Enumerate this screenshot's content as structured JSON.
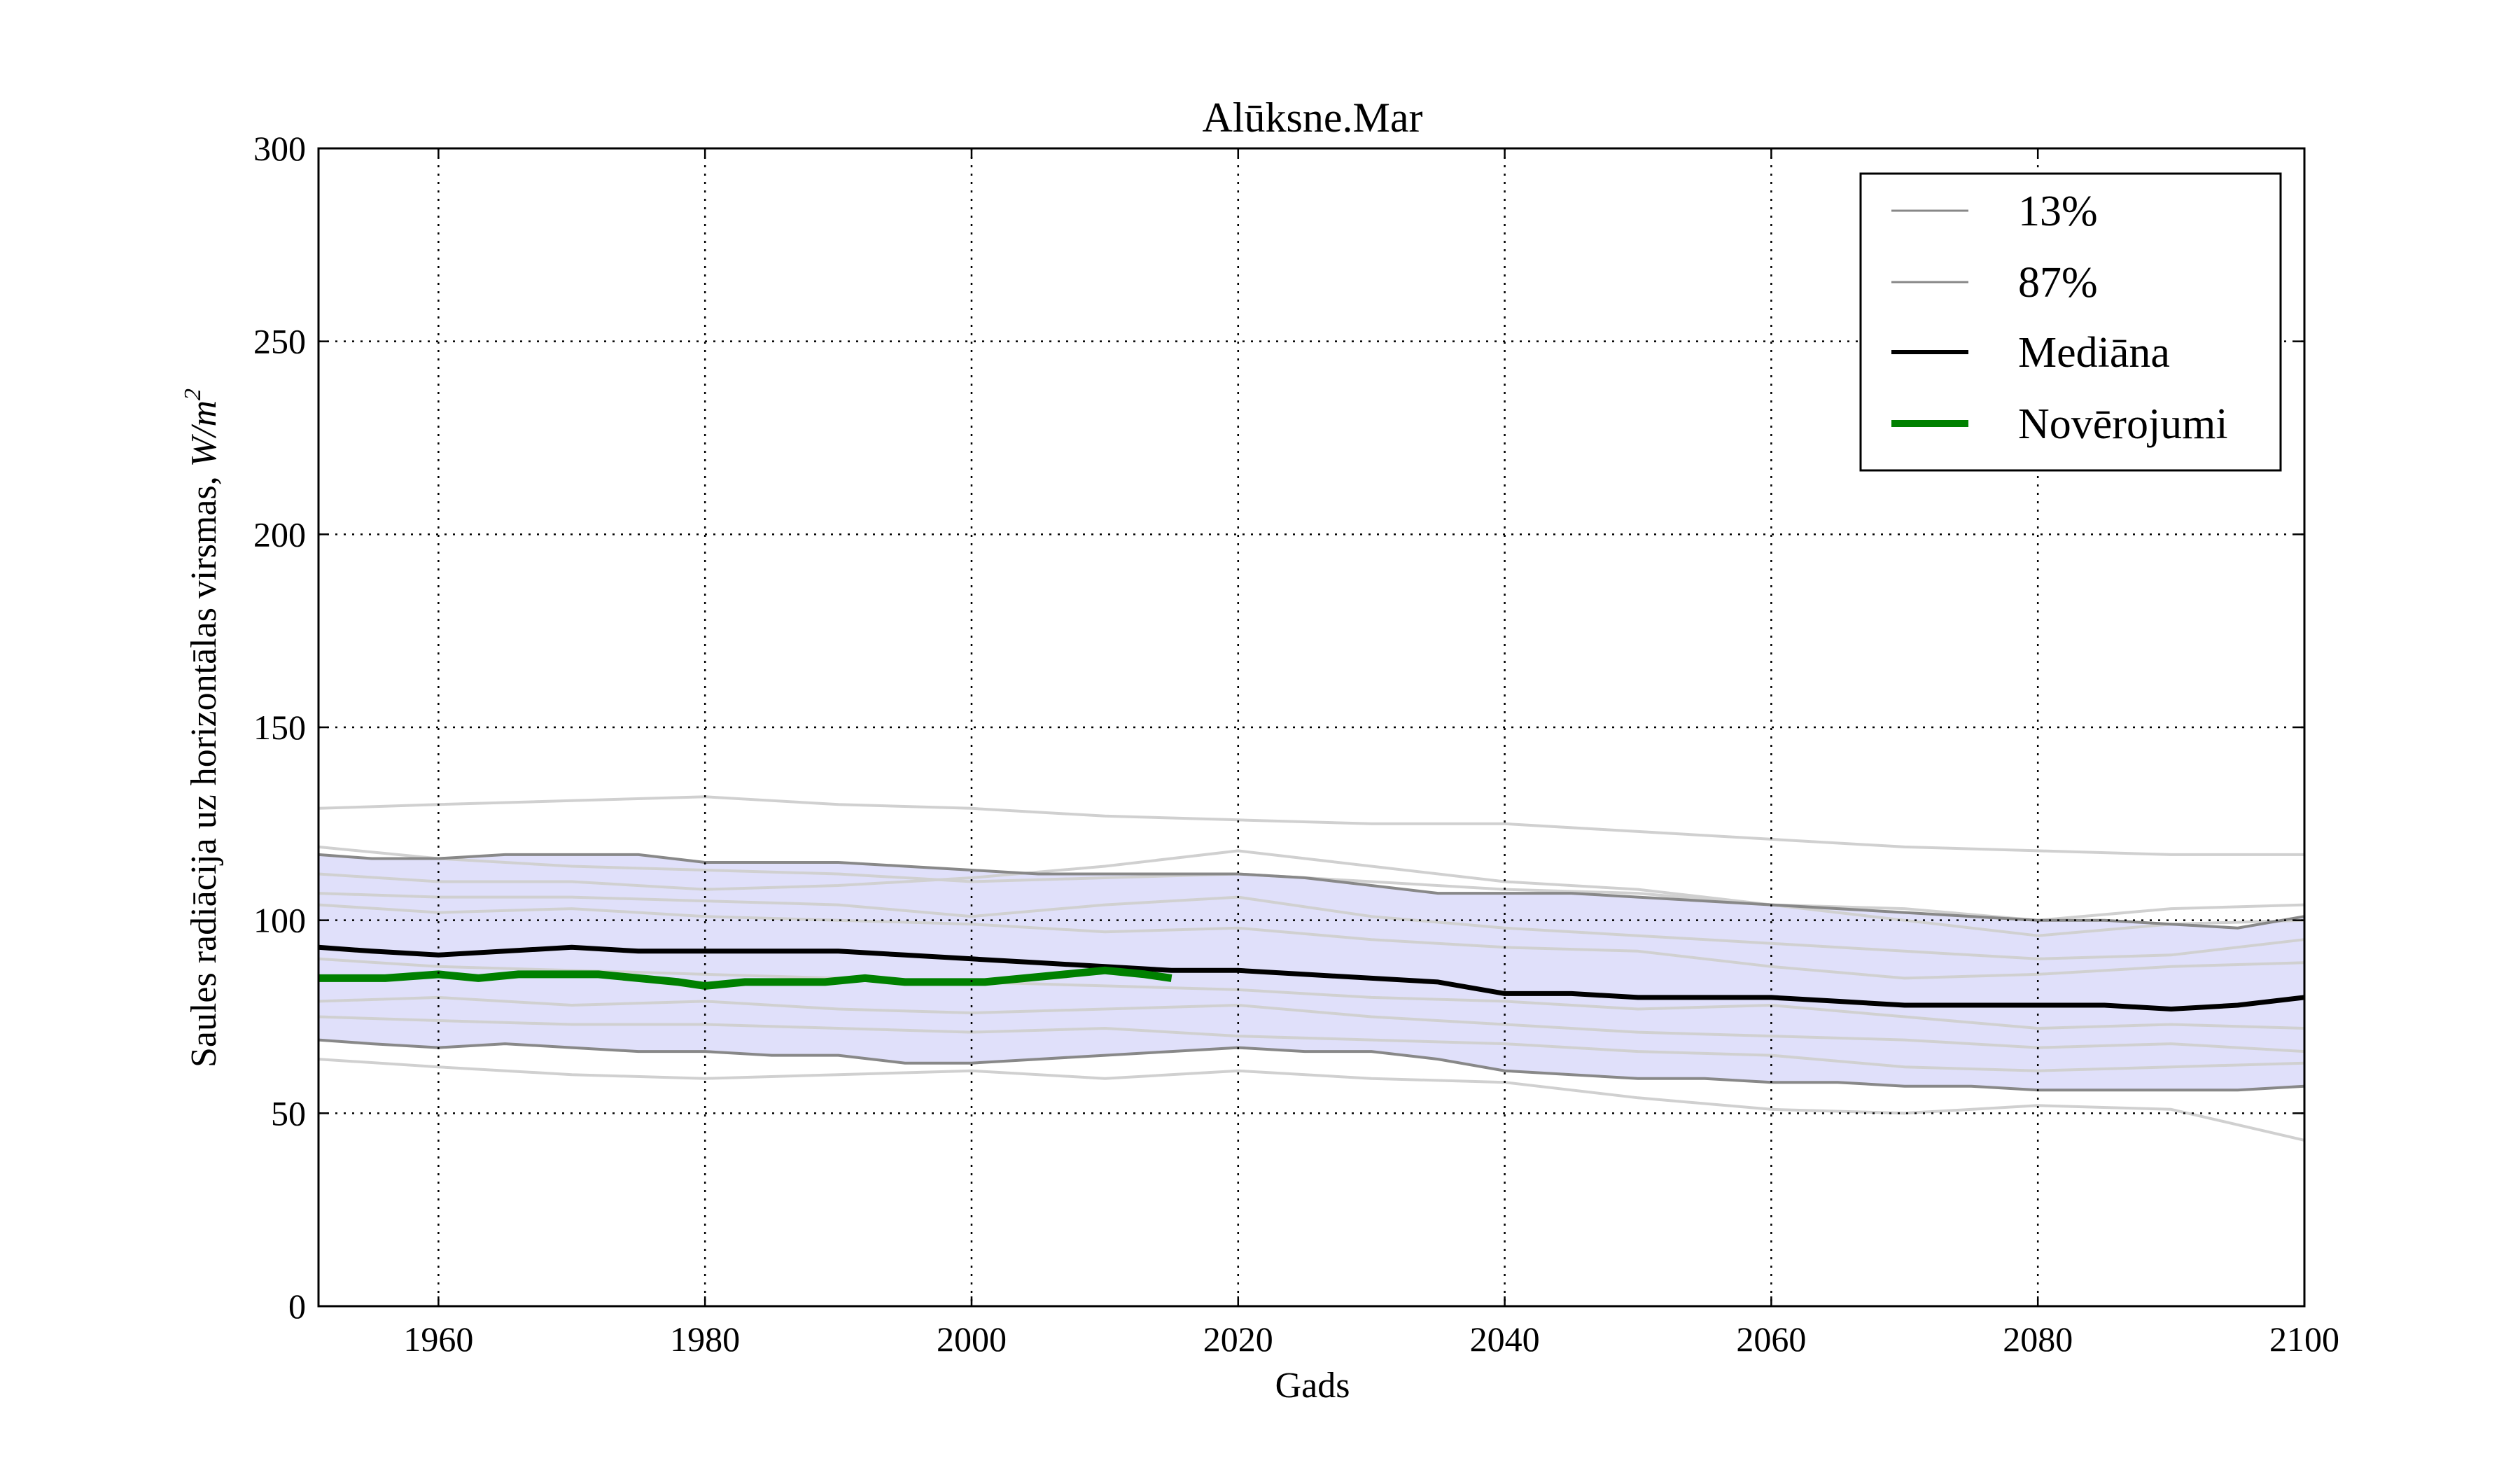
{
  "chart_data": {
    "type": "line",
    "title": "Alūksne.Mar",
    "xlabel": "Gads",
    "ylabel": "Saules radiācija uz horizontālas virsmas, ",
    "ylabel_math": "W/m",
    "ylabel_exp": "2",
    "xlim": [
      1951,
      2100
    ],
    "ylim": [
      0,
      300
    ],
    "xticks": [
      1960,
      1980,
      2000,
      2020,
      2040,
      2060,
      2080,
      2100
    ],
    "yticks": [
      0,
      50,
      100,
      150,
      200,
      250,
      300
    ],
    "grid": true,
    "legend_position": "top-right",
    "colors": {
      "band": "#e0e0fa",
      "ensemble": "#d0d0d0",
      "percentile": "#888888",
      "median": "#000000",
      "observations": "#008000"
    },
    "ensemble": [
      {
        "x": [
          1951,
          1960,
          1970,
          1980,
          1990,
          2000,
          2010,
          2020,
          2030,
          2040,
          2050,
          2060,
          2070,
          2080,
          2090,
          2100
        ],
        "y": [
          129,
          130,
          131,
          132,
          130,
          129,
          127,
          126,
          125,
          125,
          123,
          121,
          119,
          118,
          117,
          117
        ]
      },
      {
        "x": [
          1951,
          1960,
          1970,
          1980,
          1990,
          2000,
          2010,
          2020,
          2030,
          2040,
          2050,
          2060,
          2070,
          2080,
          2090,
          2100
        ],
        "y": [
          119,
          116,
          114,
          113,
          112,
          110,
          111,
          112,
          110,
          108,
          107,
          104,
          103,
          100,
          103,
          104
        ]
      },
      {
        "x": [
          1951,
          1960,
          1970,
          1980,
          1990,
          2000,
          2010,
          2020,
          2030,
          2040,
          2050,
          2060,
          2070,
          2080,
          2090,
          2100
        ],
        "y": [
          112,
          110,
          110,
          108,
          109,
          111,
          114,
          118,
          114,
          110,
          108,
          104,
          100,
          96,
          99,
          100
        ]
      },
      {
        "x": [
          1951,
          1960,
          1970,
          1980,
          1990,
          2000,
          2010,
          2020,
          2030,
          2040,
          2050,
          2060,
          2070,
          2080,
          2090,
          2100
        ],
        "y": [
          107,
          106,
          106,
          105,
          104,
          101,
          104,
          106,
          101,
          98,
          96,
          94,
          92,
          90,
          91,
          95
        ]
      },
      {
        "x": [
          1951,
          1960,
          1970,
          1980,
          1990,
          2000,
          2010,
          2020,
          2030,
          2040,
          2050,
          2060,
          2070,
          2080,
          2090,
          2100
        ],
        "y": [
          104,
          102,
          103,
          101,
          100,
          99,
          97,
          98,
          95,
          93,
          92,
          88,
          85,
          86,
          88,
          89
        ]
      },
      {
        "x": [
          1951,
          1960,
          1970,
          1980,
          1990,
          2000,
          2010,
          2020,
          2030,
          2040,
          2050,
          2060,
          2070,
          2080,
          2090,
          2100
        ],
        "y": [
          90,
          88,
          87,
          86,
          85,
          84,
          83,
          82,
          80,
          79,
          77,
          78,
          75,
          72,
          73,
          72
        ]
      },
      {
        "x": [
          1951,
          1960,
          1970,
          1980,
          1990,
          2000,
          2010,
          2020,
          2030,
          2040,
          2050,
          2060,
          2070,
          2080,
          2090,
          2100
        ],
        "y": [
          79,
          80,
          78,
          79,
          77,
          76,
          77,
          78,
          75,
          73,
          71,
          70,
          69,
          67,
          68,
          66
        ]
      },
      {
        "x": [
          1951,
          1960,
          1970,
          1980,
          1990,
          2000,
          2010,
          2020,
          2030,
          2040,
          2050,
          2060,
          2070,
          2080,
          2090,
          2100
        ],
        "y": [
          75,
          74,
          73,
          73,
          72,
          71,
          72,
          70,
          69,
          68,
          66,
          65,
          62,
          61,
          62,
          63
        ]
      },
      {
        "x": [
          1951,
          1960,
          1970,
          1980,
          1990,
          2000,
          2010,
          2020,
          2030,
          2040,
          2050,
          2060,
          2070,
          2080,
          2090,
          2100
        ],
        "y": [
          64,
          62,
          60,
          59,
          60,
          61,
          59,
          61,
          59,
          58,
          54,
          51,
          50,
          52,
          51,
          43
        ]
      }
    ],
    "series": [
      {
        "name": "13%",
        "x": [
          1951,
          1955,
          1960,
          1965,
          1970,
          1975,
          1980,
          1985,
          1990,
          1995,
          2000,
          2005,
          2010,
          2015,
          2020,
          2025,
          2030,
          2035,
          2040,
          2045,
          2050,
          2055,
          2060,
          2065,
          2070,
          2075,
          2080,
          2085,
          2090,
          2095,
          2100
        ],
        "y": [
          69,
          68,
          67,
          68,
          67,
          66,
          66,
          65,
          65,
          63,
          63,
          64,
          65,
          66,
          67,
          66,
          66,
          64,
          61,
          60,
          59,
          59,
          58,
          58,
          57,
          57,
          56,
          56,
          56,
          56,
          57
        ]
      },
      {
        "name": "87%",
        "x": [
          1951,
          1955,
          1960,
          1965,
          1970,
          1975,
          1980,
          1985,
          1990,
          1995,
          2000,
          2005,
          2010,
          2015,
          2020,
          2025,
          2030,
          2035,
          2040,
          2045,
          2050,
          2055,
          2060,
          2065,
          2070,
          2075,
          2080,
          2085,
          2090,
          2095,
          2100
        ],
        "y": [
          117,
          116,
          116,
          117,
          117,
          117,
          115,
          115,
          115,
          114,
          113,
          112,
          112,
          112,
          112,
          111,
          109,
          107,
          107,
          107,
          106,
          105,
          104,
          103,
          102,
          101,
          100,
          100,
          99,
          98,
          101
        ]
      },
      {
        "name": "Mediāna",
        "x": [
          1951,
          1955,
          1960,
          1965,
          1970,
          1975,
          1980,
          1985,
          1990,
          1995,
          2000,
          2005,
          2010,
          2015,
          2020,
          2025,
          2030,
          2035,
          2040,
          2045,
          2050,
          2055,
          2060,
          2065,
          2070,
          2075,
          2080,
          2085,
          2090,
          2095,
          2100
        ],
        "y": [
          93,
          92,
          91,
          92,
          93,
          92,
          92,
          92,
          92,
          91,
          90,
          89,
          88,
          87,
          87,
          86,
          85,
          84,
          81,
          81,
          80,
          80,
          80,
          79,
          78,
          78,
          78,
          78,
          77,
          78,
          80
        ]
      },
      {
        "name": "Novērojumi",
        "x": [
          1951,
          1953,
          1956,
          1960,
          1963,
          1966,
          1969,
          1972,
          1975,
          1978,
          1980,
          1983,
          1986,
          1989,
          1992,
          1995,
          1998,
          2001,
          2004,
          2007,
          2010,
          2013,
          2015
        ],
        "y": [
          85,
          85,
          85,
          86,
          85,
          86,
          86,
          86,
          85,
          84,
          83,
          84,
          84,
          84,
          85,
          84,
          84,
          84,
          85,
          86,
          87,
          86,
          85
        ]
      }
    ]
  }
}
